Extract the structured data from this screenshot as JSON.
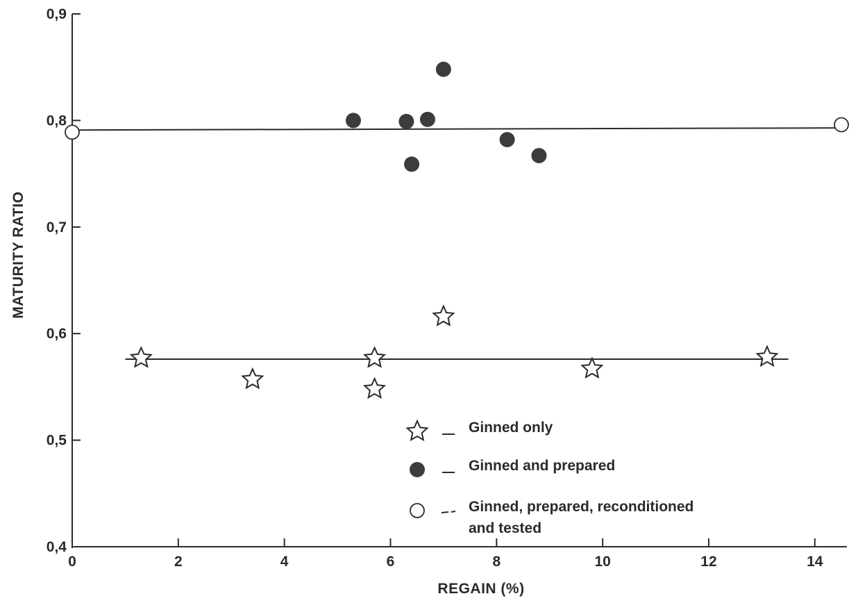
{
  "chart_data": {
    "type": "scatter",
    "xlabel": "REGAIN (%)",
    "ylabel": "MATURITY RATIO",
    "xlim": [
      0,
      14.5
    ],
    "ylim": [
      0.4,
      0.9
    ],
    "x_ticks": [
      {
        "value": 0,
        "label": "0"
      },
      {
        "value": 2,
        "label": "2"
      },
      {
        "value": 4,
        "label": "4"
      },
      {
        "value": 6,
        "label": "6"
      },
      {
        "value": 8,
        "label": "8"
      },
      {
        "value": 10,
        "label": "10"
      },
      {
        "value": 12,
        "label": "12"
      },
      {
        "value": 14,
        "label": "14"
      }
    ],
    "y_ticks": [
      {
        "value": 0.4,
        "label": "0,4"
      },
      {
        "value": 0.5,
        "label": "0,5"
      },
      {
        "value": 0.6,
        "label": "0,6"
      },
      {
        "value": 0.7,
        "label": "0,7"
      },
      {
        "value": 0.8,
        "label": "0,8"
      },
      {
        "value": 0.9,
        "label": "0,9"
      }
    ],
    "grid": false,
    "legend_position": "bottom-center",
    "series": [
      {
        "name": "Ginned only",
        "marker": "star",
        "points": [
          {
            "x": 1.3,
            "y": 0.577
          },
          {
            "x": 3.4,
            "y": 0.557
          },
          {
            "x": 5.7,
            "y": 0.577
          },
          {
            "x": 5.7,
            "y": 0.548
          },
          {
            "x": 7.0,
            "y": 0.616
          },
          {
            "x": 9.8,
            "y": 0.567
          },
          {
            "x": 13.1,
            "y": 0.578
          }
        ]
      },
      {
        "name": "Ginned and prepared",
        "marker": "filled-circle",
        "points": [
          {
            "x": 5.3,
            "y": 0.8
          },
          {
            "x": 6.3,
            "y": 0.799
          },
          {
            "x": 6.4,
            "y": 0.759
          },
          {
            "x": 6.7,
            "y": 0.801
          },
          {
            "x": 7.0,
            "y": 0.848
          },
          {
            "x": 8.2,
            "y": 0.782
          },
          {
            "x": 8.8,
            "y": 0.767
          }
        ]
      },
      {
        "name": "Ginned, prepared, reconditioned and tested",
        "name_lines": [
          "Ginned, prepared, reconditioned",
          "and tested"
        ],
        "marker": "open-circle",
        "points": [
          {
            "x": 0.0,
            "y": 0.789
          },
          {
            "x": 14.5,
            "y": 0.796
          }
        ]
      }
    ],
    "reference_lines": [
      {
        "x": [
          0.0,
          14.5
        ],
        "y": [
          0.791,
          0.793
        ]
      },
      {
        "x": [
          1.0,
          13.5
        ],
        "y": [
          0.576,
          0.576
        ]
      }
    ],
    "colors": {
      "ink": "#2a2a2a",
      "filled_marker": "#3c3c3c",
      "background": "#ffffff"
    }
  }
}
